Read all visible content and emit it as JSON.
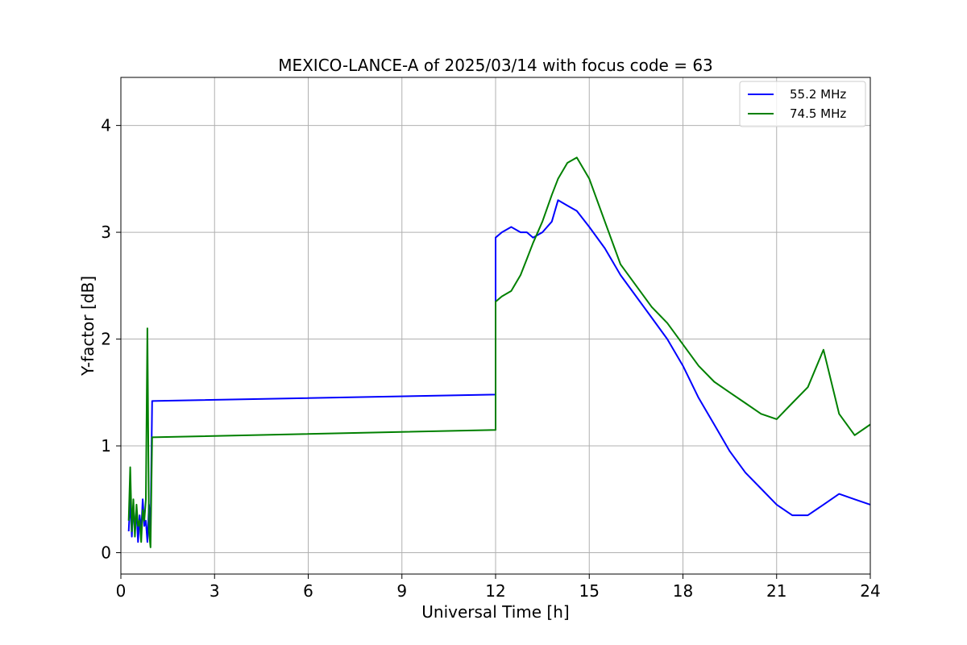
{
  "chart_data": {
    "type": "line",
    "title": "MEXICO-LANCE-A of 2025/03/14 with focus code = 63",
    "xlabel": "Universal Time [h]",
    "ylabel": "Y-factor [dB]",
    "xlim": [
      0,
      24
    ],
    "ylim": [
      -0.2,
      4.45
    ],
    "xticks": [
      0,
      3,
      6,
      9,
      12,
      15,
      18,
      21,
      24
    ],
    "xtick_labels": [
      "0",
      "3",
      "6",
      "9",
      "12",
      "15",
      "18",
      "21",
      "24"
    ],
    "yticks": [
      0,
      1,
      2,
      3,
      4
    ],
    "ytick_labels": [
      "0",
      "1",
      "2",
      "3",
      "4"
    ],
    "grid": true,
    "legend_position": "top-right",
    "series": [
      {
        "name": "55.2 MHz",
        "color": "#0000ff",
        "x": [
          0.25,
          0.3,
          0.35,
          0.4,
          0.45,
          0.5,
          0.55,
          0.6,
          0.65,
          0.7,
          0.75,
          0.8,
          0.85,
          0.9,
          0.95,
          1.0,
          12.0,
          12.0,
          12.2,
          12.5,
          12.8,
          13.0,
          13.2,
          13.5,
          13.8,
          14.0,
          14.3,
          14.6,
          15.0,
          15.5,
          16.0,
          16.5,
          17.0,
          17.5,
          18.0,
          18.5,
          19.0,
          19.5,
          20.0,
          20.5,
          21.0,
          21.5,
          22.0,
          22.5,
          23.0,
          23.5,
          24.0
        ],
        "y": [
          0.2,
          0.5,
          0.15,
          0.45,
          0.2,
          0.4,
          0.1,
          0.35,
          0.2,
          0.5,
          0.25,
          0.3,
          0.1,
          0.45,
          0.2,
          1.42,
          1.48,
          2.95,
          3.0,
          3.05,
          3.0,
          3.0,
          2.95,
          3.0,
          3.1,
          3.3,
          3.25,
          3.2,
          3.05,
          2.85,
          2.6,
          2.4,
          2.2,
          2.0,
          1.75,
          1.45,
          1.2,
          0.95,
          0.75,
          0.6,
          0.45,
          0.35,
          0.35,
          0.45,
          0.55,
          0.5,
          0.45
        ]
      },
      {
        "name": "74.5 MHz",
        "color": "#008000",
        "x": [
          0.25,
          0.3,
          0.35,
          0.4,
          0.45,
          0.5,
          0.55,
          0.6,
          0.65,
          0.7,
          0.75,
          0.8,
          0.85,
          0.9,
          0.95,
          1.0,
          12.0,
          12.0,
          12.2,
          12.5,
          12.8,
          13.0,
          13.2,
          13.5,
          13.8,
          14.0,
          14.3,
          14.6,
          15.0,
          15.5,
          16.0,
          16.5,
          17.0,
          17.5,
          18.0,
          18.5,
          19.0,
          19.5,
          20.0,
          20.5,
          21.0,
          21.5,
          22.0,
          22.5,
          23.0,
          23.5,
          24.0
        ],
        "y": [
          0.3,
          0.8,
          0.2,
          0.5,
          0.15,
          0.45,
          0.25,
          0.3,
          0.1,
          0.4,
          0.3,
          0.5,
          2.1,
          0.2,
          0.05,
          1.08,
          1.15,
          2.35,
          2.4,
          2.45,
          2.6,
          2.75,
          2.9,
          3.1,
          3.35,
          3.5,
          3.65,
          3.7,
          3.5,
          3.1,
          2.7,
          2.5,
          2.3,
          2.15,
          1.95,
          1.75,
          1.6,
          1.5,
          1.4,
          1.3,
          1.25,
          1.4,
          1.55,
          1.9,
          1.3,
          1.1,
          1.2
        ]
      }
    ]
  }
}
